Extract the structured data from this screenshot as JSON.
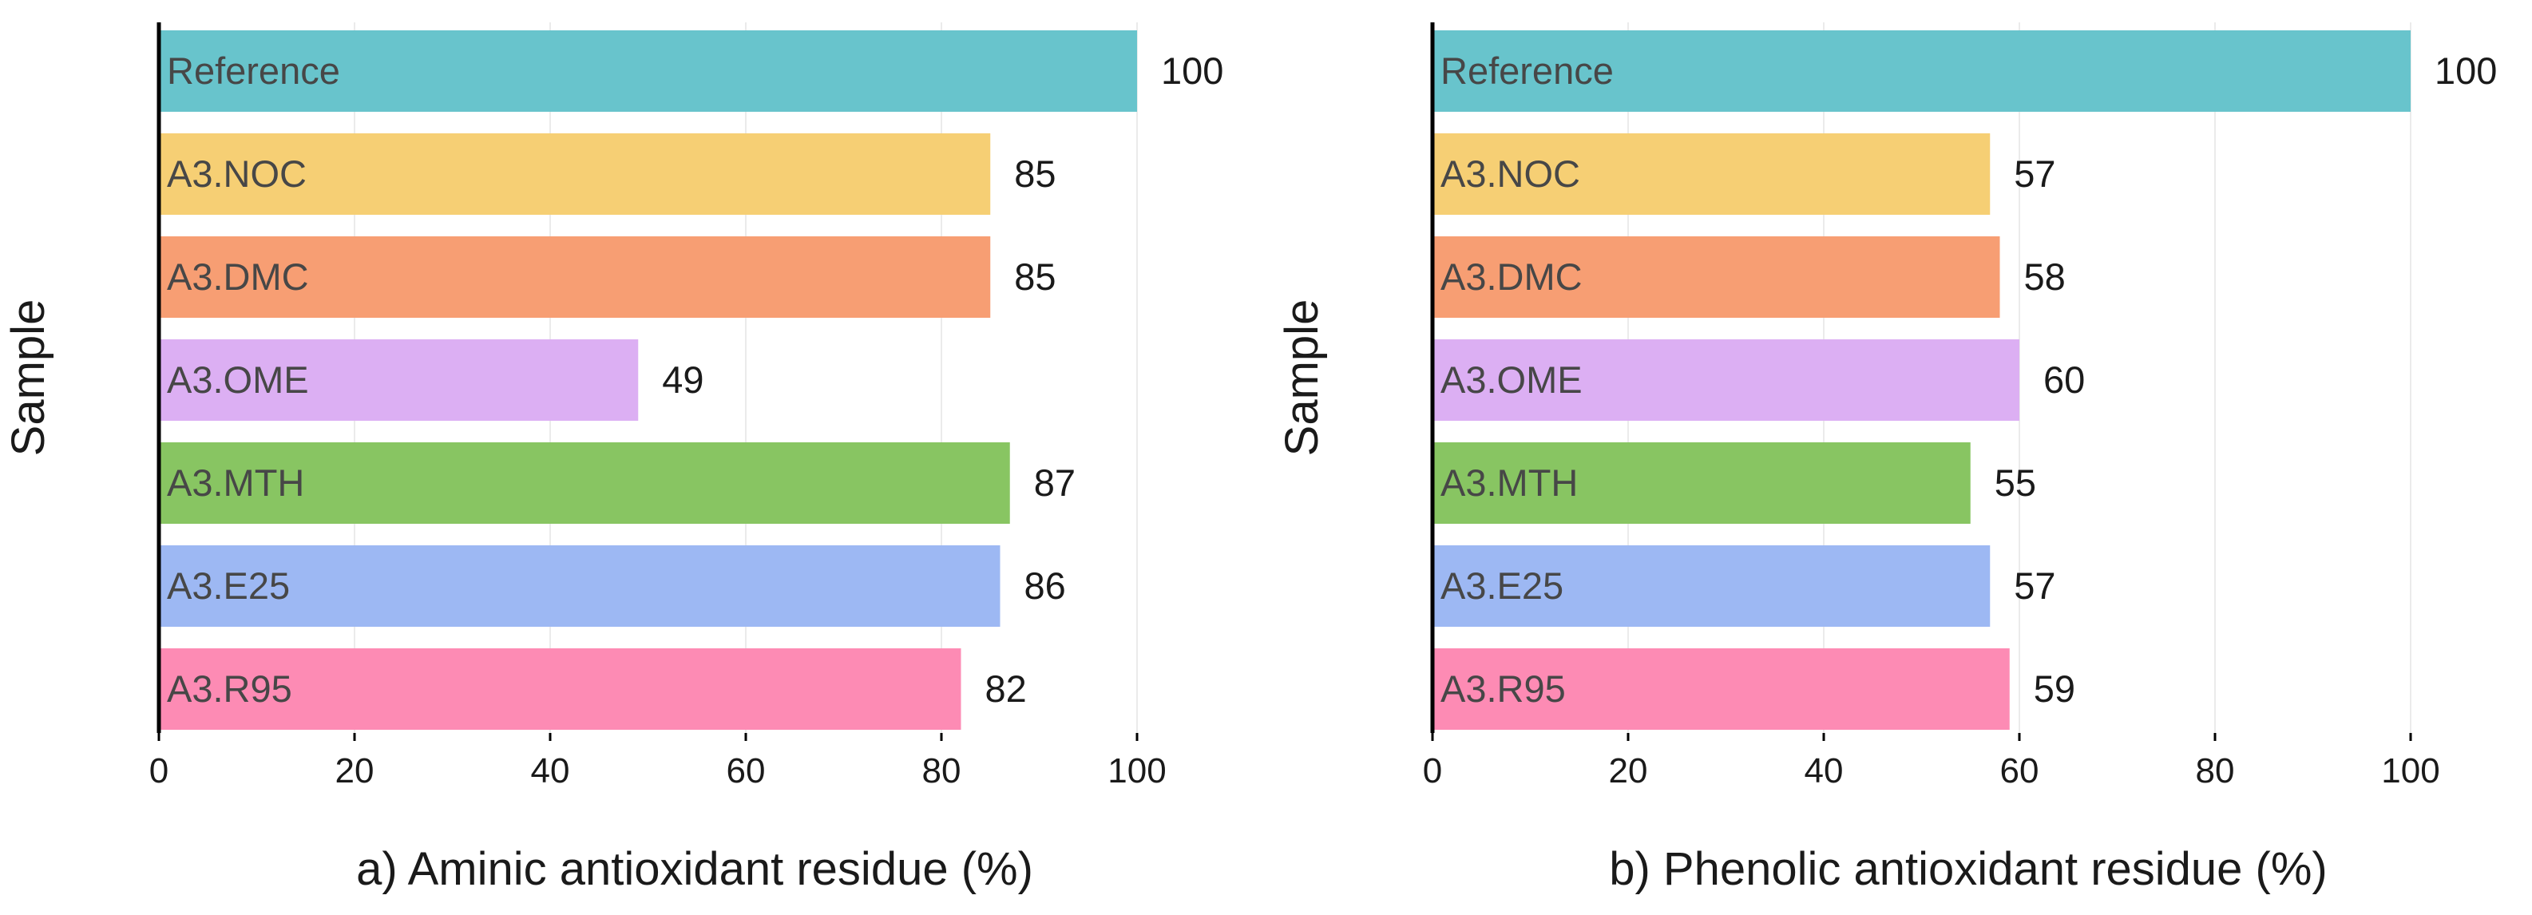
{
  "chart_data": [
    {
      "type": "bar",
      "orientation": "horizontal",
      "panel": "a",
      "categories": [
        "Reference",
        "A3.NOC",
        "A3.DMC",
        "A3.OME",
        "A3.MTH",
        "A3.E25",
        "A3.R95"
      ],
      "values": [
        100,
        85,
        85,
        49,
        87,
        86,
        82
      ],
      "value_labels": [
        "100",
        "85",
        "85",
        "49",
        "87",
        "86",
        "82"
      ],
      "xlabel": "a) Aminic antioxidant residue (%)",
      "ylabel": "Sample",
      "xlim": [
        0,
        100
      ],
      "xticks": [
        0,
        20,
        40,
        60,
        80,
        100
      ],
      "grid": "vertical"
    },
    {
      "type": "bar",
      "orientation": "horizontal",
      "panel": "b",
      "categories": [
        "Reference",
        "A3.NOC",
        "A3.DMC",
        "A3.OME",
        "A3.MTH",
        "A3.E25",
        "A3.R95"
      ],
      "values": [
        100,
        57,
        58,
        60,
        55,
        57,
        59
      ],
      "value_labels": [
        "100",
        "57",
        "58",
        "60",
        "55",
        "57",
        "59"
      ],
      "xlabel": "b) Phenolic antioxidant residue (%)",
      "ylabel": "Sample",
      "xlim": [
        0,
        100
      ],
      "xticks": [
        0,
        20,
        40,
        60,
        80,
        100
      ],
      "grid": "vertical"
    }
  ],
  "colors": {
    "Reference": "#68c4cc",
    "A3.NOC": "#f6cf74",
    "A3.DMC": "#f79e73",
    "A3.OME": "#dcaff3",
    "A3.MTH": "#88c562",
    "A3.E25": "#9db8f3",
    "A3.R95": "#fd8bb4",
    "grid": "#ebebeb",
    "axis": "#000000"
  }
}
